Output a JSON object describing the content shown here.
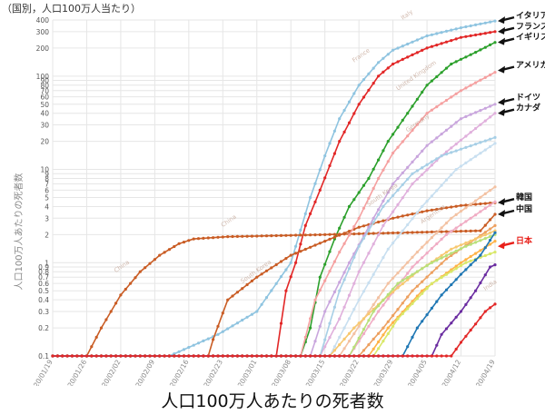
{
  "header": {
    "unit_note": "（国別，人口100万人当たり）"
  },
  "caption": "人口100万人あたりの死者数",
  "colors": {
    "background": "#ffffff",
    "grid": "#e6e6e6",
    "axis_text": "#888888",
    "callout_arrow": "#111111",
    "japan_arrow": "#e8201a"
  },
  "chart_data": {
    "type": "line",
    "title": "",
    "xlabel": "",
    "ylabel": "人口100万人あたりの死者数",
    "y_scale": "log",
    "ylim": [
      0.1,
      400
    ],
    "xlim": [
      "2020-01-19",
      "2020-04-19"
    ],
    "grid": true,
    "legend": "none (inline labels and callout arrows on the right)",
    "x_tick_labels": [
      "2020/01/19",
      "2020/01/26",
      "2020/02/02",
      "2020/02/09",
      "2020/02/16",
      "2020/02/23",
      "2020/03/01",
      "2020/03/08",
      "2020/03/15",
      "2020/03/22",
      "2020/03/29",
      "2020/04/05",
      "2020/04/12",
      "2020/04/19"
    ],
    "y_ticks": [
      0.1,
      0.2,
      0.3,
      0.4,
      0.5,
      0.6,
      0.7,
      0.8,
      0.9,
      1,
      2,
      3,
      4,
      5,
      6,
      7,
      8,
      9,
      10,
      20,
      30,
      40,
      50,
      60,
      70,
      80,
      90,
      100,
      200,
      300,
      400
    ],
    "y_tick_labels": [
      "0.1",
      "0.2",
      "0.3",
      "0.4",
      "0.5",
      "0.6",
      "0.7",
      "0.8",
      "0.9",
      "1",
      "2",
      "3",
      "4",
      "5",
      "6",
      "7",
      "8",
      "9",
      "10",
      "20",
      "30",
      "40",
      "50",
      "60",
      "70",
      "80",
      "90",
      "100",
      "200",
      "300",
      "400"
    ],
    "series": [
      {
        "color": "#8fc4e0",
        "points": [
          [
            "2020-01-19",
            0.1
          ],
          [
            "2020-02-12",
            0.1
          ],
          [
            "2020-02-22",
            0.17
          ],
          [
            "2020-03-01",
            0.3
          ],
          [
            "2020-03-08",
            1.0
          ],
          [
            "2020-03-12",
            5.0
          ],
          [
            "2020-03-15",
            14
          ],
          [
            "2020-03-18",
            35
          ],
          [
            "2020-03-22",
            80
          ],
          [
            "2020-03-26",
            140
          ],
          [
            "2020-03-29",
            190
          ],
          [
            "2020-04-05",
            270
          ],
          [
            "2020-04-12",
            330
          ],
          [
            "2020-04-19",
            390
          ]
        ]
      },
      {
        "color": "#e22727",
        "points": [
          [
            "2020-01-19",
            0.1
          ],
          [
            "2020-03-05",
            0.1
          ],
          [
            "2020-03-07",
            0.5
          ],
          [
            "2020-03-09",
            1.0
          ],
          [
            "2020-03-11",
            2.5
          ],
          [
            "2020-03-14",
            6.0
          ],
          [
            "2020-03-18",
            20
          ],
          [
            "2020-03-22",
            50
          ],
          [
            "2020-03-26",
            100
          ],
          [
            "2020-03-29",
            135
          ],
          [
            "2020-04-05",
            200
          ],
          [
            "2020-04-12",
            260
          ],
          [
            "2020-04-19",
            300
          ]
        ]
      },
      {
        "color": "#2ca02c",
        "points": [
          [
            "2020-01-19",
            0.1
          ],
          [
            "2020-03-10",
            0.1
          ],
          [
            "2020-03-12",
            0.2
          ],
          [
            "2020-03-14",
            0.7
          ],
          [
            "2020-03-17",
            1.8
          ],
          [
            "2020-03-20",
            4.0
          ],
          [
            "2020-03-24",
            8.0
          ],
          [
            "2020-03-28",
            20
          ],
          [
            "2020-04-01",
            40
          ],
          [
            "2020-04-05",
            80
          ],
          [
            "2020-04-10",
            135
          ],
          [
            "2020-04-15",
            180
          ],
          [
            "2020-04-19",
            230
          ]
        ]
      },
      {
        "color": "#c95c24",
        "points": [
          [
            "2020-01-19",
            0.1
          ],
          [
            "2020-01-26",
            0.1
          ],
          [
            "2020-01-29",
            0.2
          ],
          [
            "2020-02-02",
            0.45
          ],
          [
            "2020-02-06",
            0.8
          ],
          [
            "2020-02-10",
            1.2
          ],
          [
            "2020-02-14",
            1.6
          ],
          [
            "2020-02-17",
            1.8
          ],
          [
            "2020-02-24",
            1.9
          ],
          [
            "2020-03-15",
            2.0
          ],
          [
            "2020-04-16",
            2.2
          ],
          [
            "2020-04-19",
            3.3
          ]
        ]
      },
      {
        "color": "#c95c24",
        "points": [
          [
            "2020-01-19",
            0.1
          ],
          [
            "2020-02-20",
            0.1
          ],
          [
            "2020-02-21",
            0.15
          ],
          [
            "2020-02-24",
            0.4
          ],
          [
            "2020-03-01",
            0.7
          ],
          [
            "2020-03-08",
            1.2
          ],
          [
            "2020-03-15",
            1.7
          ],
          [
            "2020-03-22",
            2.4
          ],
          [
            "2020-03-29",
            3.0
          ],
          [
            "2020-04-05",
            3.6
          ],
          [
            "2020-04-12",
            4.1
          ],
          [
            "2020-04-19",
            4.4
          ]
        ]
      },
      {
        "color": "#f5a0a0",
        "points": [
          [
            "2020-01-19",
            0.1
          ],
          [
            "2020-03-10",
            0.1
          ],
          [
            "2020-03-13",
            0.4
          ],
          [
            "2020-03-18",
            1.3
          ],
          [
            "2020-03-22",
            3.0
          ],
          [
            "2020-03-26",
            8.0
          ],
          [
            "2020-03-29",
            15
          ],
          [
            "2020-04-05",
            40
          ],
          [
            "2020-04-12",
            70
          ],
          [
            "2020-04-19",
            110
          ]
        ]
      },
      {
        "color": "#c9a6dd",
        "points": [
          [
            "2020-01-19",
            0.1
          ],
          [
            "2020-03-12",
            0.1
          ],
          [
            "2020-03-15",
            0.3
          ],
          [
            "2020-03-20",
            1.0
          ],
          [
            "2020-03-25",
            3.0
          ],
          [
            "2020-03-29",
            7.0
          ],
          [
            "2020-04-05",
            18
          ],
          [
            "2020-04-12",
            35
          ],
          [
            "2020-04-19",
            50
          ]
        ]
      },
      {
        "color": "#e0b0dc",
        "points": [
          [
            "2020-01-19",
            0.1
          ],
          [
            "2020-03-14",
            0.1
          ],
          [
            "2020-03-18",
            0.25
          ],
          [
            "2020-03-22",
            0.8
          ],
          [
            "2020-03-27",
            2.5
          ],
          [
            "2020-04-02",
            7.0
          ],
          [
            "2020-04-08",
            14
          ],
          [
            "2020-04-14",
            25
          ],
          [
            "2020-04-19",
            40
          ]
        ]
      },
      {
        "color": "#a7cfe6",
        "points": [
          [
            "2020-01-19",
            0.1
          ],
          [
            "2020-03-14",
            0.1
          ],
          [
            "2020-03-18",
            0.5
          ],
          [
            "2020-03-22",
            1.5
          ],
          [
            "2020-03-27",
            4.0
          ],
          [
            "2020-04-02",
            9.0
          ],
          [
            "2020-04-08",
            14
          ],
          [
            "2020-04-19",
            22
          ]
        ]
      },
      {
        "color": "#c8dff0",
        "points": [
          [
            "2020-01-19",
            0.1
          ],
          [
            "2020-03-16",
            0.1
          ],
          [
            "2020-03-22",
            0.4
          ],
          [
            "2020-03-28",
            1.4
          ],
          [
            "2020-04-04",
            4.0
          ],
          [
            "2020-04-11",
            10
          ],
          [
            "2020-04-19",
            19
          ]
        ]
      },
      {
        "color": "#f3c2a3",
        "points": [
          [
            "2020-01-19",
            0.1
          ],
          [
            "2020-03-18",
            0.1
          ],
          [
            "2020-03-23",
            0.25
          ],
          [
            "2020-03-28",
            0.6
          ],
          [
            "2020-04-03",
            1.3
          ],
          [
            "2020-04-10",
            3.0
          ],
          [
            "2020-04-19",
            6.5
          ]
        ]
      },
      {
        "color": "#f0acc4",
        "points": [
          [
            "2020-01-19",
            0.1
          ],
          [
            "2020-03-20",
            0.1
          ],
          [
            "2020-03-26",
            0.3
          ],
          [
            "2020-04-02",
            0.9
          ],
          [
            "2020-04-09",
            2.0
          ],
          [
            "2020-04-19",
            4.5
          ]
        ]
      },
      {
        "color": "#eda060",
        "points": [
          [
            "2020-01-19",
            0.1
          ],
          [
            "2020-03-22",
            0.1
          ],
          [
            "2020-03-27",
            0.2
          ],
          [
            "2020-04-02",
            0.5
          ],
          [
            "2020-04-09",
            1.1
          ],
          [
            "2020-04-19",
            2.5
          ]
        ]
      },
      {
        "color": "#f7c870",
        "points": [
          [
            "2020-01-19",
            0.1
          ],
          [
            "2020-03-16",
            0.1
          ],
          [
            "2020-03-21",
            0.2
          ],
          [
            "2020-03-27",
            0.4
          ],
          [
            "2020-04-03",
            0.8
          ],
          [
            "2020-04-10",
            1.4
          ],
          [
            "2020-04-19",
            2.2
          ]
        ]
      },
      {
        "color": "#b8e07a",
        "points": [
          [
            "2020-01-19",
            0.1
          ],
          [
            "2020-03-20",
            0.1
          ],
          [
            "2020-03-25",
            0.3
          ],
          [
            "2020-03-30",
            0.6
          ],
          [
            "2020-04-06",
            1.0
          ],
          [
            "2020-04-13",
            1.5
          ],
          [
            "2020-04-19",
            2.0
          ]
        ]
      },
      {
        "color": "#ffb347",
        "points": [
          [
            "2020-01-19",
            0.1
          ],
          [
            "2020-03-24",
            0.1
          ],
          [
            "2020-03-28",
            0.2
          ],
          [
            "2020-04-04",
            0.5
          ],
          [
            "2020-04-12",
            1.0
          ],
          [
            "2020-04-19",
            1.7
          ]
        ]
      },
      {
        "color": "#d9e86a",
        "points": [
          [
            "2020-01-19",
            0.1
          ],
          [
            "2020-03-25",
            0.1
          ],
          [
            "2020-03-30",
            0.25
          ],
          [
            "2020-04-06",
            0.6
          ],
          [
            "2020-04-13",
            1.0
          ],
          [
            "2020-04-19",
            1.3
          ]
        ]
      },
      {
        "color": "#1f77b4",
        "points": [
          [
            "2020-01-19",
            0.1
          ],
          [
            "2020-03-31",
            0.1
          ],
          [
            "2020-04-03",
            0.2
          ],
          [
            "2020-04-08",
            0.45
          ],
          [
            "2020-04-12",
            0.75
          ],
          [
            "2020-04-16",
            1.2
          ],
          [
            "2020-04-19",
            2.1
          ]
        ]
      },
      {
        "color": "#6a2ca0",
        "points": [
          [
            "2020-01-19",
            0.1
          ],
          [
            "2020-04-06",
            0.1
          ],
          [
            "2020-04-08",
            0.17
          ],
          [
            "2020-04-12",
            0.3
          ],
          [
            "2020-04-15",
            0.5
          ],
          [
            "2020-04-18",
            0.9
          ],
          [
            "2020-04-19",
            0.95
          ]
        ]
      },
      {
        "color": "#e22727",
        "points": [
          [
            "2020-01-19",
            0.1
          ],
          [
            "2020-04-10",
            0.1
          ],
          [
            "2020-04-12",
            0.14
          ],
          [
            "2020-04-15",
            0.22
          ],
          [
            "2020-04-17",
            0.3
          ],
          [
            "2020-04-19",
            0.36
          ]
        ]
      }
    ],
    "inline_labels": [
      {
        "text": "China",
        "date": "2020-02-23",
        "value": 2.4
      },
      {
        "text": "China",
        "date": "2020-02-01",
        "value": 0.78
      },
      {
        "text": "South Korea",
        "date": "2020-02-27",
        "value": 0.6
      },
      {
        "text": "India",
        "date": "2020-04-17",
        "value": 0.5
      },
      {
        "text": "Argentina",
        "date": "2020-04-04",
        "value": 2.6
      },
      {
        "text": "Italy",
        "date": "2020-03-31",
        "value": 400
      },
      {
        "text": "France",
        "date": "2020-03-21",
        "value": 140
      },
      {
        "text": "United Kingdom",
        "date": "2020-03-30",
        "value": 70
      },
      {
        "text": "Germany",
        "date": "2020-04-01",
        "value": 25
      },
      {
        "text": "South Korea",
        "date": "2020-03-24",
        "value": 4.0
      }
    ],
    "callouts": [
      {
        "text": "イタリア",
        "value": 390
      },
      {
        "text": "フランス",
        "value": 300
      },
      {
        "text": "イギリス",
        "value": 230
      },
      {
        "text": "アメリカ",
        "value": 115
      },
      {
        "text": "ドイツ",
        "value": 52
      },
      {
        "text": "カナダ",
        "value": 40
      },
      {
        "text": "韓国",
        "value": 4.4
      },
      {
        "text": "中国",
        "value": 3.3
      },
      {
        "text": "日本",
        "value": 1.5
      }
    ]
  }
}
